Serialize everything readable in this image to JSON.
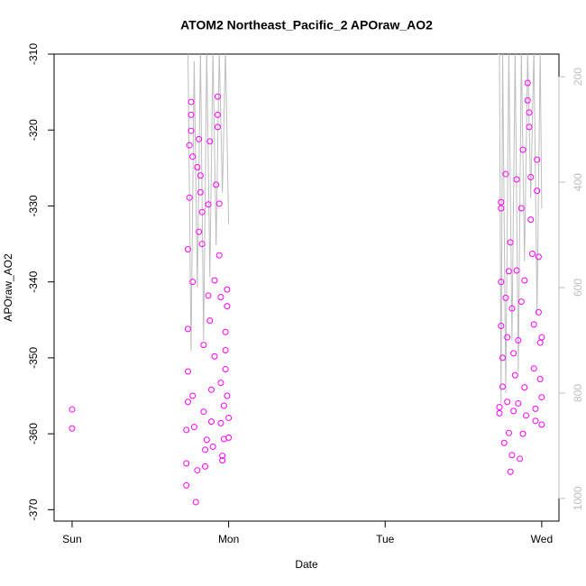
{
  "chart_data": {
    "type": "scatter",
    "title": "ATOM2 Northeast_Pacific_2 APOraw_AO2",
    "x_label": "Date",
    "y_label": "APOraw_AO2",
    "xlim": [
      -0.115,
      3.11
    ],
    "xticks": [
      {
        "value": 0,
        "label": "Sun"
      },
      {
        "value": 1,
        "label": "Mon"
      },
      {
        "value": 2,
        "label": "Tue"
      },
      {
        "value": 3,
        "label": "Wed"
      }
    ],
    "ylim": [
      -371.5,
      -310
    ],
    "yticks": [
      -370,
      -360,
      -350,
      -340,
      -330,
      -320,
      -310
    ],
    "y2lim": [
      1043,
      157
    ],
    "y2ticks": [
      200,
      400,
      600,
      800,
      1000
    ],
    "color": "#ff00ff",
    "x": [
      0.0,
      0.0,
      0.73,
      0.73,
      0.73,
      0.74,
      0.74,
      0.74,
      0.74,
      0.75,
      0.75,
      0.76,
      0.76,
      0.76,
      0.77,
      0.77,
      0.77,
      0.78,
      0.79,
      0.8,
      0.8,
      0.81,
      0.81,
      0.82,
      0.82,
      0.83,
      0.83,
      0.84,
      0.84,
      0.85,
      0.85,
      0.86,
      0.87,
      0.87,
      0.88,
      0.88,
      0.89,
      0.89,
      0.9,
      0.91,
      0.91,
      0.92,
      0.93,
      0.93,
      0.93,
      0.94,
      0.94,
      0.95,
      0.95,
      0.95,
      0.96,
      0.96,
      0.97,
      0.97,
      0.98,
      0.98,
      0.98,
      0.99,
      0.99,
      0.99,
      1.0,
      1.0,
      2.73,
      2.73,
      2.74,
      2.74,
      2.74,
      2.74,
      2.75,
      2.75,
      2.76,
      2.77,
      2.77,
      2.78,
      2.78,
      2.79,
      2.79,
      2.8,
      2.8,
      2.81,
      2.81,
      2.82,
      2.82,
      2.83,
      2.84,
      2.84,
      2.85,
      2.85,
      2.86,
      2.87,
      2.87,
      2.88,
      2.88,
      2.89,
      2.89,
      2.9,
      2.91,
      2.91,
      2.92,
      2.92,
      2.93,
      2.93,
      2.94,
      2.95,
      2.95,
      2.96,
      2.96,
      2.97,
      2.97,
      2.98,
      2.98,
      2.99,
      2.99,
      3.0,
      3.0,
      3.0
    ],
    "values": [
      -356.8,
      -359.3,
      -366.8,
      -363.9,
      -359.5,
      -355.8,
      -351.8,
      -346.2,
      -335.7,
      -328.9,
      -322.0,
      -316.3,
      -318.0,
      -320.1,
      -323.5,
      -340.0,
      -355.0,
      -359.1,
      -369.0,
      -364.8,
      -324.9,
      -321.2,
      -333.4,
      -328.2,
      -326.0,
      -330.8,
      -335.0,
      -348.3,
      -357.1,
      -362.1,
      -364.3,
      -360.8,
      -341.8,
      -329.8,
      -321.5,
      -345.1,
      -354.2,
      -358.4,
      -361.7,
      -349.8,
      -339.8,
      -327.2,
      -315.6,
      -319.6,
      -318.0,
      -329.7,
      -336.5,
      -342.0,
      -353.3,
      -358.6,
      -362.9,
      -363.5,
      -360.7,
      -356.3,
      -351.5,
      -349.0,
      -346.6,
      -343.2,
      -341.0,
      -355.0,
      -360.5,
      -357.9,
      -356.5,
      -357.3,
      -330.3,
      -329.5,
      -340.0,
      -345.8,
      -350.0,
      -353.8,
      -361.2,
      -325.8,
      -342.1,
      -347.3,
      -355.8,
      -359.9,
      -338.6,
      -334.8,
      -365.0,
      -362.8,
      -343.5,
      -349.4,
      -357.0,
      -352.3,
      -326.5,
      -338.5,
      -347.7,
      -356.0,
      -363.3,
      -342.6,
      -330.3,
      -322.6,
      -360.0,
      -339.8,
      -353.9,
      -357.6,
      -313.8,
      -316.1,
      -319.6,
      -317.7,
      -326.2,
      -331.8,
      -336.3,
      -345.6,
      -351.4,
      -356.7,
      -358.3,
      -328.0,
      -323.9,
      -336.7,
      -344.0,
      -348.0,
      -352.8,
      -355.2,
      -358.8,
      -347.3
    ],
    "line": {
      "axis": "y2",
      "color": "#bebebe",
      "x": [
        0.74,
        0.76,
        0.78,
        0.8,
        0.82,
        0.84,
        0.86,
        0.88,
        0.9,
        0.92,
        0.94,
        0.96,
        0.98,
        1.0,
        null,
        2.72,
        2.73,
        2.74,
        2.75,
        2.77,
        2.79,
        2.81,
        2.83,
        2.85,
        2.87,
        2.89,
        2.91,
        2.93,
        2.95,
        2.97,
        2.99,
        3.0
      ],
      "values": [
        150,
        720,
        170,
        600,
        150,
        700,
        150,
        580,
        150,
        520,
        150,
        420,
        150,
        480,
        null,
        157,
        157,
        820,
        150,
        800,
        150,
        700,
        150,
        760,
        150,
        550,
        150,
        430,
        150,
        650,
        150,
        450
      ]
    }
  }
}
